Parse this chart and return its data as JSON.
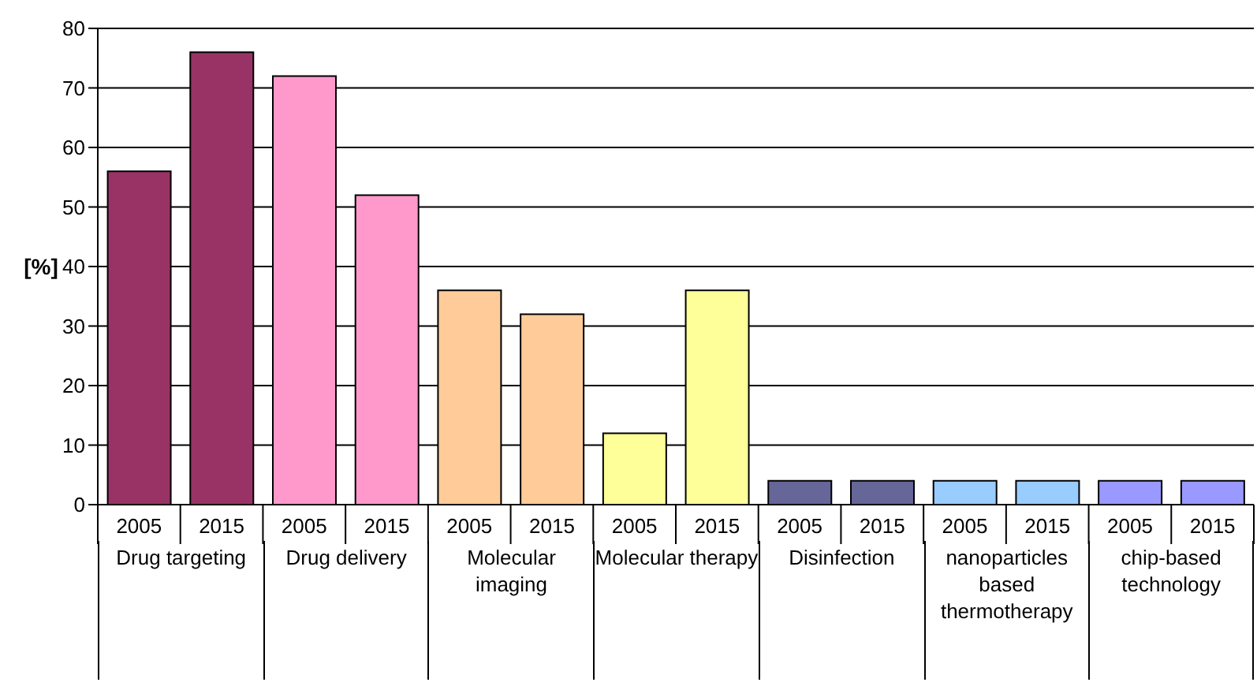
{
  "chart_data": {
    "type": "bar",
    "ylabel": "[%]",
    "categories": [
      "2005",
      "2015",
      "2005",
      "2015",
      "2005",
      "2015",
      "2005",
      "2015",
      "2005",
      "2015",
      "2005",
      "2015",
      "2005",
      "2015"
    ],
    "values": [
      56,
      76,
      72,
      52,
      36,
      32,
      12,
      36,
      4,
      4,
      4,
      4,
      4,
      4
    ],
    "colors": [
      "#993366",
      "#993366",
      "#ff99cc",
      "#ff99cc",
      "#ffcc99",
      "#ffcc99",
      "#ffff99",
      "#ffff99",
      "#666699",
      "#666699",
      "#99ccff",
      "#99ccff",
      "#9999ff",
      "#9999ff"
    ],
    "ylim": [
      0,
      80
    ],
    "yticks": [
      0,
      10,
      20,
      30,
      40,
      50,
      60,
      70,
      80
    ],
    "grid": "y",
    "annotations": [
      "Drug targeting",
      "Drug delivery",
      "Molecular imaging",
      "Molecular therapy",
      "Disinfection",
      "nanoparticles based thermotherapy",
      "chip-based technology"
    ]
  }
}
